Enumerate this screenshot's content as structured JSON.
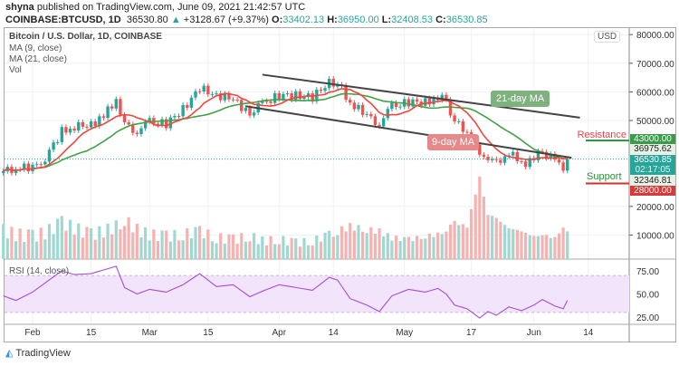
{
  "header": {
    "publisher": "shyna",
    "published_text": "published on TradingView.com, June 09, 2021 21:42:57 UTC",
    "symbol": "COINBASE:BTCUSD, 1D",
    "last": "36530.80",
    "change": "+3128.67 (+9.37%)",
    "open_label": "O:",
    "open": "33402.13",
    "high_label": "H:",
    "high": "36950.00",
    "low_label": "L:",
    "low": "32408.53",
    "close_label": "C:",
    "close": "36530.85"
  },
  "legend": {
    "title": "Bitcoin / U.S. Dollar, 1D, COINBASE",
    "ma9": "MA (9, close)",
    "ma21": "MA (21, close)",
    "vol": "Vol",
    "rsi": "RSI (14, close)"
  },
  "currency": "USD",
  "annotations": {
    "ma21_label": "21-day MA",
    "ma9_label": "9-day MA",
    "resistance": "Resistance",
    "support": "Support"
  },
  "price_tags": {
    "resistance": "43000.00",
    "high": "36975.62",
    "last": "36530.85",
    "countdown": "02:17:05",
    "low": "32346.81",
    "support": "28000.00"
  },
  "colors": {
    "up": "#26a69a",
    "down": "#ef5350",
    "ma9": "#f0463c",
    "ma21": "#43a047",
    "rsi": "#a64ed8",
    "resistance": "#2e8b3e",
    "support": "#d32f2f"
  },
  "chart_data": {
    "type": "candlestick",
    "price_axis": {
      "ticks": [
        "80000.00",
        "70000.00",
        "60000.00",
        "50000.00",
        "20000.00",
        "10000.00"
      ],
      "values": [
        80000,
        70000,
        60000,
        50000,
        20000,
        10000
      ]
    },
    "time_axis": {
      "ticks": [
        "Feb",
        "15",
        "Mar",
        "15",
        "Apr",
        "14",
        "May",
        "17",
        "Jun",
        "14"
      ],
      "dates": [
        "2021-02-01",
        "2021-02-15",
        "2021-03-01",
        "2021-03-15",
        "2021-04-01",
        "2021-04-14",
        "2021-05-01",
        "2021-05-17",
        "2021-06-01",
        "2021-06-14"
      ]
    },
    "rsi_axis": {
      "ticks": [
        "75.00",
        "50.00",
        "25.00"
      ],
      "values": [
        75,
        50,
        25
      ],
      "band": [
        30,
        70
      ]
    },
    "dates": [
      "2021-01-25",
      "2021-01-28",
      "2021-02-01",
      "2021-02-04",
      "2021-02-08",
      "2021-02-11",
      "2021-02-15",
      "2021-02-18",
      "2021-02-21",
      "2021-02-23",
      "2021-02-26",
      "2021-03-01",
      "2021-03-05",
      "2021-03-09",
      "2021-03-13",
      "2021-03-17",
      "2021-03-21",
      "2021-03-25",
      "2021-03-28",
      "2021-04-01",
      "2021-04-05",
      "2021-04-09",
      "2021-04-13",
      "2021-04-15",
      "2021-04-18",
      "2021-04-22",
      "2021-04-25",
      "2021-04-28",
      "2021-05-02",
      "2021-05-06",
      "2021-05-09",
      "2021-05-11",
      "2021-05-13",
      "2021-05-16",
      "2021-05-19",
      "2021-05-21",
      "2021-05-23",
      "2021-05-26",
      "2021-05-29",
      "2021-06-01",
      "2021-06-03",
      "2021-06-06",
      "2021-06-08",
      "2021-06-09"
    ],
    "close": [
      32300,
      33500,
      33500,
      37000,
      46200,
      47900,
      48600,
      51500,
      57500,
      48800,
      46300,
      49500,
      48800,
      54000,
      61200,
      58900,
      57300,
      52300,
      55800,
      58800,
      58700,
      58100,
      63500,
      63200,
      56200,
      51700,
      49000,
      54800,
      56400,
      56400,
      58200,
      56700,
      49700,
      46400,
      37000,
      37500,
      34700,
      39200,
      34600,
      36700,
      39000,
      35800,
      33500,
      36530
    ],
    "volume_relative": [
      35,
      30,
      28,
      32,
      45,
      38,
      30,
      34,
      40,
      48,
      36,
      30,
      28,
      30,
      34,
      26,
      24,
      28,
      22,
      24,
      20,
      22,
      30,
      34,
      40,
      36,
      34,
      26,
      24,
      28,
      30,
      36,
      45,
      40,
      100,
      55,
      50,
      38,
      34,
      28,
      30,
      26,
      40,
      34
    ],
    "rsi": [
      48,
      43,
      52,
      62,
      75,
      71,
      72,
      76,
      80,
      57,
      50,
      55,
      52,
      60,
      72,
      58,
      60,
      47,
      53,
      60,
      57,
      54,
      68,
      65,
      45,
      38,
      31,
      48,
      55,
      52,
      56,
      50,
      38,
      34,
      24,
      31,
      27,
      36,
      32,
      38,
      44,
      37,
      34,
      43
    ],
    "trendlines": [
      {
        "from": [
          "2021-03-28",
          66000
        ],
        "to": [
          "2021-06-12",
          51000
        ]
      },
      {
        "from": [
          "2021-03-24",
          55000
        ],
        "to": [
          "2021-06-10",
          37000
        ]
      }
    ],
    "levels": {
      "resistance": 43000,
      "support": 28000
    }
  },
  "footer": {
    "brand": "TradingView"
  }
}
